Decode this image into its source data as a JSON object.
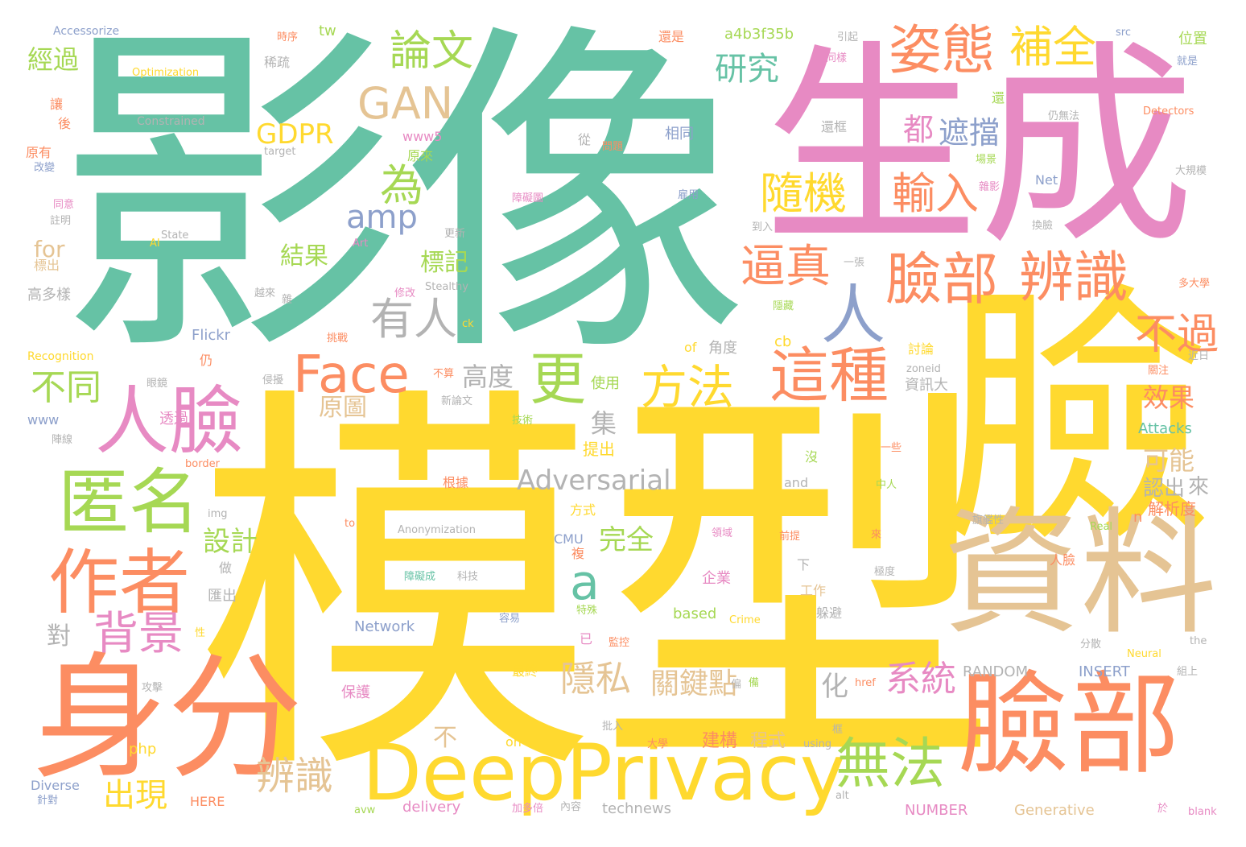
{
  "palette": {
    "teal": "#66c2a5",
    "orange": "#fc8d62",
    "pink": "#e78ac3",
    "yellow": "#ffd92f",
    "tan": "#e5c494",
    "green": "#a6d854",
    "blue": "#8da0cb",
    "grey": "#b3b3b3"
  },
  "words": [
    {
      "text": "影像",
      "color": "teal"
    },
    {
      "text": "模型",
      "color": "yellow"
    },
    {
      "text": "生成",
      "color": "pink"
    },
    {
      "text": "臉",
      "color": "yellow"
    },
    {
      "text": "資料",
      "color": "tan"
    },
    {
      "text": "身分",
      "color": "orange"
    },
    {
      "text": "臉部",
      "color": "orange"
    },
    {
      "text": "DeepPrivacy",
      "color": "yellow"
    },
    {
      "text": "人臉",
      "color": "pink"
    },
    {
      "text": "匿名",
      "color": "green"
    },
    {
      "text": "作者",
      "color": "orange"
    },
    {
      "text": "Face",
      "color": "orange"
    },
    {
      "text": "姿態",
      "color": "orange"
    },
    {
      "text": "臉部",
      "color": "orange"
    },
    {
      "text": "辨識",
      "color": "orange"
    },
    {
      "text": "這種",
      "color": "orange"
    },
    {
      "text": "人",
      "color": "blue"
    },
    {
      "text": "方法",
      "color": "yellow"
    },
    {
      "text": "無法",
      "color": "green"
    },
    {
      "text": "更",
      "color": "green"
    },
    {
      "text": "GAN",
      "color": "tan"
    },
    {
      "text": "論文",
      "color": "green"
    },
    {
      "text": "補全",
      "color": "yellow"
    },
    {
      "text": "隨機",
      "color": "yellow"
    },
    {
      "text": "輸入",
      "color": "orange"
    },
    {
      "text": "逼真",
      "color": "orange"
    },
    {
      "text": "不過",
      "color": "orange"
    },
    {
      "text": "有人",
      "color": "grey"
    },
    {
      "text": "背景",
      "color": "pink"
    },
    {
      "text": "辨識",
      "color": "tan"
    },
    {
      "text": "出現",
      "color": "yellow"
    },
    {
      "text": "不同",
      "color": "green"
    },
    {
      "text": "a",
      "color": "teal"
    },
    {
      "text": "為",
      "color": "green"
    },
    {
      "text": "amp",
      "color": "blue"
    },
    {
      "text": "研究",
      "color": "teal"
    },
    {
      "text": "GDPR",
      "color": "yellow"
    },
    {
      "text": "遮擋",
      "color": "blue"
    },
    {
      "text": "都",
      "color": "pink"
    },
    {
      "text": "Adversarial",
      "color": "grey"
    },
    {
      "text": "系統",
      "color": "pink"
    },
    {
      "text": "隱私",
      "color": "tan"
    },
    {
      "text": "關鍵點",
      "color": "tan"
    },
    {
      "text": "高度",
      "color": "grey"
    },
    {
      "text": "效果",
      "color": "orange"
    },
    {
      "text": "經過",
      "color": "green"
    },
    {
      "text": "結果",
      "color": "green"
    },
    {
      "text": "標記",
      "color": "green"
    },
    {
      "text": "設計",
      "color": "green"
    },
    {
      "text": "原圖",
      "color": "tan"
    },
    {
      "text": "集",
      "color": "grey"
    },
    {
      "text": "完全",
      "color": "green"
    },
    {
      "text": "可能",
      "color": "tan"
    },
    {
      "text": "認出",
      "color": "grey"
    },
    {
      "text": "來",
      "color": "grey"
    },
    {
      "text": "化",
      "color": "grey"
    },
    {
      "text": "不",
      "color": "tan"
    },
    {
      "text": "對",
      "color": "grey"
    },
    {
      "text": "for",
      "color": "tan"
    },
    {
      "text": "a4b3f35b",
      "color": "green"
    },
    {
      "text": "tw",
      "color": "green"
    },
    {
      "text": "Accessorize",
      "color": "blue"
    },
    {
      "text": "Optimization",
      "color": "yellow"
    },
    {
      "text": "Constrained",
      "color": "grey"
    },
    {
      "text": "www5",
      "color": "pink"
    },
    {
      "text": "原來",
      "color": "green"
    },
    {
      "text": "target",
      "color": "grey"
    },
    {
      "text": "Flickr",
      "color": "blue"
    },
    {
      "text": "Recognition",
      "color": "yellow"
    },
    {
      "text": "www",
      "color": "blue"
    },
    {
      "text": "Stealthy",
      "color": "grey"
    },
    {
      "text": "State",
      "color": "grey"
    },
    {
      "text": "AI",
      "color": "yellow"
    },
    {
      "text": "Art",
      "color": "pink"
    },
    {
      "text": "Anonymization",
      "color": "grey"
    },
    {
      "text": "Network",
      "color": "blue"
    },
    {
      "text": "based",
      "color": "green"
    },
    {
      "text": "Crime",
      "color": "yellow"
    },
    {
      "text": "RANDOM",
      "color": "grey"
    },
    {
      "text": "INSERT",
      "color": "blue"
    },
    {
      "text": "NUMBER",
      "color": "pink"
    },
    {
      "text": "Generative",
      "color": "tan"
    },
    {
      "text": "Diverse",
      "color": "blue"
    },
    {
      "text": "HERE",
      "color": "orange"
    },
    {
      "text": "delivery",
      "color": "pink"
    },
    {
      "text": "technews",
      "color": "grey"
    },
    {
      "text": "Net",
      "color": "blue"
    },
    {
      "text": "Attacks",
      "color": "teal"
    },
    {
      "text": "Detectors",
      "color": "orange"
    },
    {
      "text": "src",
      "color": "blue"
    },
    {
      "text": "CMU",
      "color": "blue"
    },
    {
      "text": "php",
      "color": "yellow"
    },
    {
      "text": "on",
      "color": "yellow"
    },
    {
      "text": "and",
      "color": "grey"
    },
    {
      "text": "to",
      "color": "orange"
    },
    {
      "text": "img",
      "color": "grey"
    },
    {
      "text": "border",
      "color": "orange"
    },
    {
      "text": "of",
      "color": "yellow"
    },
    {
      "text": "cb",
      "color": "yellow"
    },
    {
      "text": "ck",
      "color": "yellow"
    },
    {
      "text": "zoneid",
      "color": "grey"
    },
    {
      "text": "Real",
      "color": "green"
    },
    {
      "text": "Neural",
      "color": "yellow"
    },
    {
      "text": "the",
      "color": "grey"
    },
    {
      "text": "blank",
      "color": "pink"
    },
    {
      "text": "alt",
      "color": "grey"
    },
    {
      "text": "using",
      "color": "grey"
    },
    {
      "text": "href",
      "color": "orange"
    },
    {
      "text": "avw",
      "color": "green"
    },
    {
      "text": "n",
      "color": "orange"
    },
    {
      "text": "還是",
      "color": "orange"
    },
    {
      "text": "位置",
      "color": "green"
    },
    {
      "text": "解析度",
      "color": "orange"
    },
    {
      "text": "資訊大",
      "color": "grey"
    },
    {
      "text": "角度",
      "color": "grey"
    },
    {
      "text": "使用",
      "color": "green"
    },
    {
      "text": "提出",
      "color": "yellow"
    },
    {
      "text": "方式",
      "color": "yellow"
    },
    {
      "text": "根據",
      "color": "orange"
    },
    {
      "text": "企業",
      "color": "pink"
    },
    {
      "text": "工作",
      "color": "tan"
    },
    {
      "text": "躲避",
      "color": "grey"
    },
    {
      "text": "建構",
      "color": "orange"
    },
    {
      "text": "程式",
      "color": "tan"
    },
    {
      "text": "保護",
      "color": "pink"
    },
    {
      "text": "內容",
      "color": "grey"
    },
    {
      "text": "相同",
      "color": "blue"
    },
    {
      "text": "透過",
      "color": "pink"
    },
    {
      "text": "高多樣",
      "color": "grey"
    },
    {
      "text": "匯出",
      "color": "grey"
    },
    {
      "text": "同樣",
      "color": "pink"
    },
    {
      "text": "稀疏",
      "color": "grey"
    },
    {
      "text": "引起",
      "color": "grey"
    },
    {
      "text": "大規模",
      "color": "grey"
    },
    {
      "text": "多大學",
      "color": "orange"
    },
    {
      "text": "換臉",
      "color": "grey"
    },
    {
      "text": "隱藏",
      "color": "green"
    },
    {
      "text": "討論",
      "color": "yellow"
    },
    {
      "text": "人臉",
      "color": "orange"
    },
    {
      "text": "中人",
      "color": "green"
    },
    {
      "text": "科技",
      "color": "grey"
    },
    {
      "text": "障礙成",
      "color": "teal"
    },
    {
      "text": "旗艦性",
      "color": "grey"
    },
    {
      "text": "一張",
      "color": "grey"
    },
    {
      "text": "下",
      "color": "grey"
    },
    {
      "text": "做",
      "color": "grey"
    },
    {
      "text": "從",
      "color": "grey"
    },
    {
      "text": "還",
      "color": "green"
    },
    {
      "text": "沒",
      "color": "green"
    },
    {
      "text": "已",
      "color": "pink"
    },
    {
      "text": "原有",
      "color": "orange"
    },
    {
      "text": "後",
      "color": "orange"
    },
    {
      "text": "改變",
      "color": "blue"
    },
    {
      "text": "同意",
      "color": "pink"
    },
    {
      "text": "標出",
      "color": "tan"
    },
    {
      "text": "更新",
      "color": "grey"
    },
    {
      "text": "註明",
      "color": "grey"
    },
    {
      "text": "最終",
      "color": "yellow"
    },
    {
      "text": "容易",
      "color": "blue"
    },
    {
      "text": "特殊",
      "color": "green"
    },
    {
      "text": "複",
      "color": "orange"
    },
    {
      "text": "監控",
      "color": "orange"
    },
    {
      "text": "攻擊",
      "color": "grey"
    },
    {
      "text": "偏",
      "color": "grey"
    },
    {
      "text": "大學",
      "color": "orange"
    },
    {
      "text": "前提",
      "color": "orange"
    },
    {
      "text": "來",
      "color": "orange"
    },
    {
      "text": "一些",
      "color": "orange"
    },
    {
      "text": "關注",
      "color": "orange"
    },
    {
      "text": "分散",
      "color": "grey"
    },
    {
      "text": "於",
      "color": "pink"
    },
    {
      "text": "仍",
      "color": "orange"
    },
    {
      "text": "性",
      "color": "yellow"
    },
    {
      "text": "眼鏡",
      "color": "grey"
    },
    {
      "text": "陣線",
      "color": "grey"
    },
    {
      "text": "技術",
      "color": "green"
    },
    {
      "text": "近日",
      "color": "grey"
    },
    {
      "text": "修改",
      "color": "pink"
    },
    {
      "text": "加多倍",
      "color": "pink"
    },
    {
      "text": "針對",
      "color": "blue"
    },
    {
      "text": "時序",
      "color": "orange"
    },
    {
      "text": "讓",
      "color": "orange"
    },
    {
      "text": "框",
      "color": "grey"
    },
    {
      "text": "組上",
      "color": "grey"
    },
    {
      "text": "批入",
      "color": "grey"
    },
    {
      "text": "障礙圖",
      "color": "pink"
    },
    {
      "text": "新論文",
      "color": "grey"
    },
    {
      "text": "不算",
      "color": "orange"
    },
    {
      "text": "雜",
      "color": "grey"
    },
    {
      "text": "場景",
      "color": "green"
    },
    {
      "text": "越來",
      "color": "grey"
    },
    {
      "text": "備",
      "color": "green"
    },
    {
      "text": "雇用",
      "color": "blue"
    },
    {
      "text": "到入",
      "color": "grey"
    },
    {
      "text": "就是",
      "color": "blue"
    },
    {
      "text": "雜影",
      "color": "pink"
    },
    {
      "text": "仍無法",
      "color": "grey"
    },
    {
      "text": "還框",
      "color": "grey"
    },
    {
      "text": "挑戰",
      "color": "orange"
    },
    {
      "text": "問題",
      "color": "orange"
    },
    {
      "text": "領域",
      "color": "pink"
    },
    {
      "text": "侵擾",
      "color": "grey"
    },
    {
      "text": "極度",
      "color": "grey"
    }
  ]
}
